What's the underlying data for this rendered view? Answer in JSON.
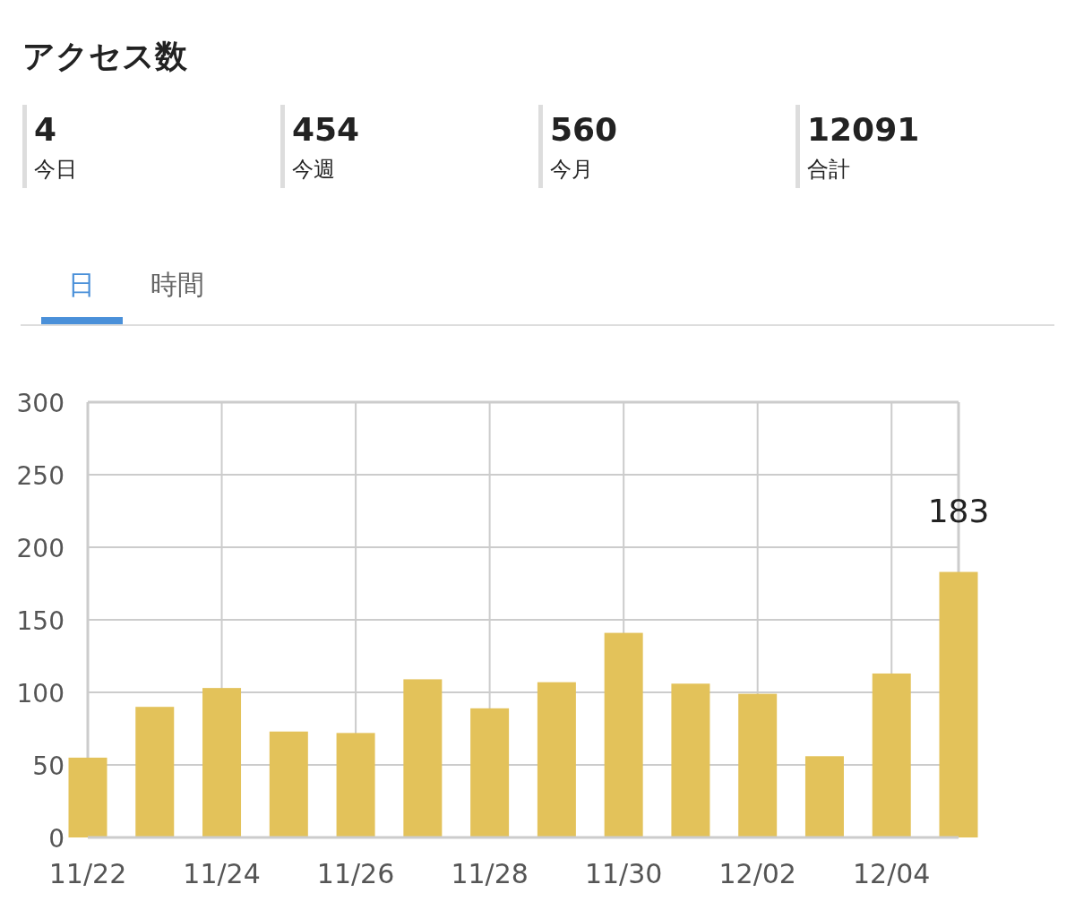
{
  "chart_data": {
    "type": "bar",
    "title": "アクセス数",
    "annotations": [
      "4",
      "今日",
      "454",
      "今週",
      "560",
      "今月",
      "12091",
      "合計",
      "日",
      "時間"
    ],
    "categories": [
      "11/22",
      null,
      "11/24",
      null,
      "11/26",
      null,
      "11/28",
      null,
      "11/30",
      null,
      "12/02",
      null,
      "12/04",
      null
    ],
    "values": [
      55,
      90,
      103,
      73,
      72,
      109,
      89,
      107,
      141,
      106,
      99,
      56,
      113,
      183
    ],
    "value_labels": [
      null,
      null,
      null,
      null,
      null,
      null,
      null,
      null,
      null,
      null,
      null,
      null,
      null,
      "183"
    ],
    "color": "#e3c25a",
    "ylim": [
      0,
      300
    ],
    "yticks": [
      0,
      50,
      100,
      150,
      200,
      250,
      300
    ],
    "grid": true
  }
}
